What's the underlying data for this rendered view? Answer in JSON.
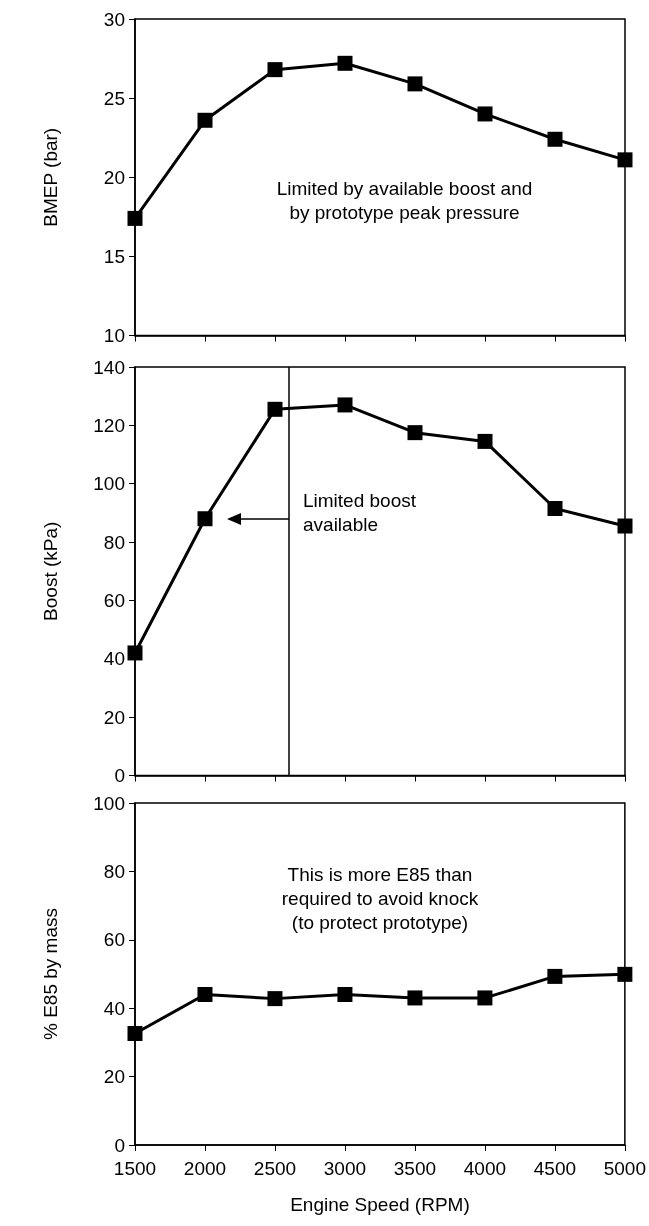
{
  "chart_data": [
    {
      "type": "line",
      "x": [
        1500,
        2000,
        2500,
        3000,
        3500,
        4000,
        4500,
        5000
      ],
      "values": [
        17.4,
        23.6,
        26.8,
        27.2,
        25.9,
        24.0,
        22.4,
        21.1
      ],
      "color": "#000000",
      "marker": "square",
      "xlim": [
        1500,
        5000
      ],
      "xticks": [
        1500,
        2000,
        2500,
        3000,
        3500,
        4000,
        4500,
        5000
      ],
      "ylim": [
        10,
        30
      ],
      "yticks": [
        10,
        15,
        20,
        25,
        30
      ],
      "ylabel": "BMEP (bar)",
      "tick_labels": "y",
      "annotations": [
        "Limited by available boost and\nby prototype peak pressure"
      ]
    },
    {
      "type": "line",
      "x": [
        1500,
        2000,
        2500,
        3000,
        3500,
        4000,
        4500,
        5000
      ],
      "values": [
        42,
        88,
        125.5,
        127,
        117.5,
        114.5,
        91.5,
        85.5
      ],
      "color": "#000000",
      "marker": "square",
      "xlim": [
        1500,
        5000
      ],
      "xticks": [
        1500,
        2000,
        2500,
        3000,
        3500,
        4000,
        4500,
        5000
      ],
      "ylim": [
        0,
        140
      ],
      "yticks": [
        0,
        20,
        40,
        60,
        80,
        100,
        120,
        140
      ],
      "ylabel": "Boost (kPa)",
      "tick_labels": "y",
      "ref_lines": [
        {
          "axis": "x",
          "value": 2600,
          "label": null,
          "color": "#000000"
        }
      ],
      "annotations": [
        {
          "text": "Limited boost\navailable",
          "x": 2600,
          "y": 88
        }
      ]
    },
    {
      "type": "line",
      "x": [
        1500,
        2000,
        2500,
        3000,
        3500,
        4000,
        4500,
        5000
      ],
      "values": [
        32.6,
        44,
        42.8,
        44,
        43,
        43,
        49.3,
        49.9
      ],
      "color": "#000000",
      "marker": "square",
      "xlim": [
        1500,
        5000
      ],
      "xticks": [
        1500,
        2000,
        2500,
        3000,
        3500,
        4000,
        4500,
        5000
      ],
      "ylim": [
        0,
        100
      ],
      "yticks": [
        0,
        20,
        40,
        60,
        80,
        100
      ],
      "ylabel": "% E85 by mass",
      "xlabel": "Engine Speed (RPM)",
      "annotations": [
        "This is more E85 than\nrequired to avoid knock\n(to protect prototype)"
      ]
    }
  ]
}
